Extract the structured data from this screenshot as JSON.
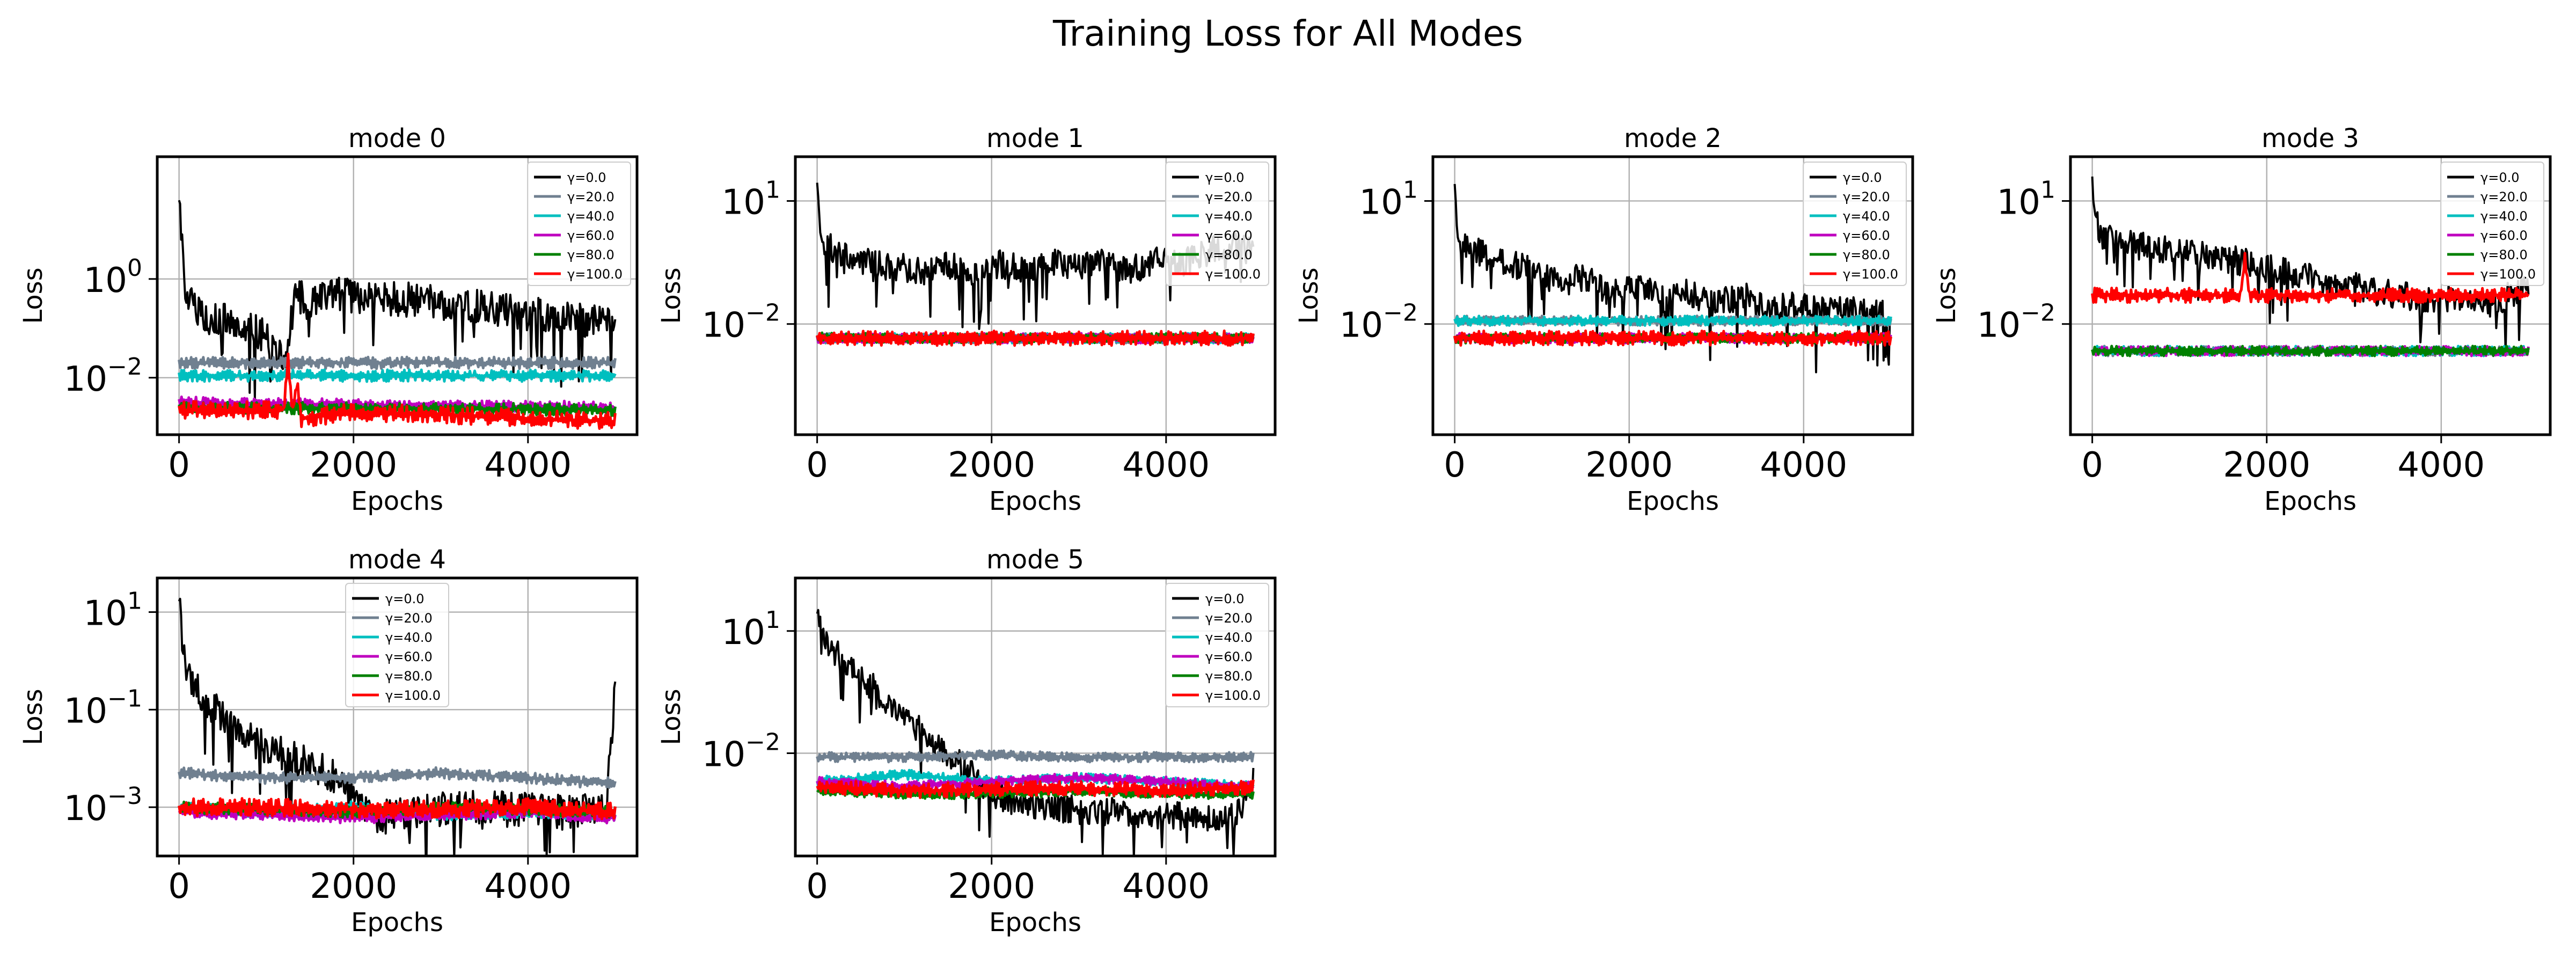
{
  "figure": {
    "title": "Training Loss for All Modes"
  },
  "chart_data": [
    {
      "type": "line",
      "title": "mode 0",
      "xlabel": "Epochs",
      "ylabel": "Loss",
      "yscale": "log",
      "xlim": [
        -250,
        5250
      ],
      "ylim": [
        0.0007,
        300
      ],
      "xticks": [
        0,
        2000,
        4000
      ],
      "yticks": [
        1,
        0.01
      ],
      "grid": true,
      "legend": "upper right",
      "series": [
        {
          "name": "γ=0.0",
          "color": "#000000",
          "x": [
            0,
            20,
            60,
            120,
            200,
            400,
            700,
            1000,
            1200,
            1280,
            1350,
            1450,
            1700,
            2000,
            2500,
            3000,
            3500,
            4000,
            4500,
            5000
          ],
          "y": [
            60,
            12,
            1.0,
            0.35,
            0.2,
            0.16,
            0.12,
            0.07,
            0.02,
            0.12,
            0.6,
            0.3,
            0.5,
            0.45,
            0.4,
            0.33,
            0.26,
            0.2,
            0.16,
            0.12
          ]
        },
        {
          "name": "γ=20.0",
          "color": "#708090",
          "x": [
            0,
            1000,
            2000,
            3000,
            4000,
            5000
          ],
          "y": [
            0.02,
            0.02,
            0.02,
            0.02,
            0.02,
            0.02
          ]
        },
        {
          "name": "γ=40.0",
          "color": "#00BFBF",
          "x": [
            0,
            1000,
            2000,
            3000,
            4000,
            5000
          ],
          "y": [
            0.011,
            0.011,
            0.011,
            0.011,
            0.011,
            0.011
          ]
        },
        {
          "name": "γ=60.0",
          "color": "#BF00BF",
          "x": [
            0,
            1000,
            2000,
            3000,
            4000,
            5000
          ],
          "y": [
            0.0032,
            0.003,
            0.0028,
            0.0027,
            0.0026,
            0.0025
          ]
        },
        {
          "name": "γ=80.0",
          "color": "#008000",
          "x": [
            0,
            1000,
            2000,
            3000,
            4000,
            5000
          ],
          "y": [
            0.0025,
            0.0024,
            0.0024,
            0.0023,
            0.0023,
            0.0022
          ]
        },
        {
          "name": "γ=100.0",
          "color": "#FF0000",
          "x": [
            0,
            1000,
            1200,
            1250,
            1300,
            1350,
            1400,
            2000,
            3000,
            4000,
            5000
          ],
          "y": [
            0.0022,
            0.0022,
            0.0022,
            0.03,
            0.002,
            0.008,
            0.0015,
            0.002,
            0.0018,
            0.0015,
            0.0013
          ]
        }
      ]
    },
    {
      "type": "line",
      "title": "mode 1",
      "xlabel": "Epochs",
      "ylabel": "Loss",
      "yscale": "log",
      "xlim": [
        -250,
        5250
      ],
      "ylim": [
        2e-05,
        120
      ],
      "xticks": [
        0,
        2000,
        4000
      ],
      "yticks": [
        10,
        0.01
      ],
      "grid": true,
      "legend": "upper right",
      "series": [
        {
          "name": "γ=0.0",
          "color": "#000000",
          "x": [
            0,
            30,
            100,
            300,
            600,
            900,
            1200,
            1500,
            1800,
            2100,
            2400,
            2700,
            3000,
            3300,
            3600,
            3900,
            4200,
            4500,
            4800,
            5000
          ],
          "y": [
            40,
            2,
            0.8,
            0.5,
            0.3,
            0.25,
            0.2,
            0.3,
            0.15,
            0.3,
            0.2,
            0.35,
            0.25,
            0.3,
            0.2,
            0.4,
            0.3,
            0.6,
            0.9,
            0.5
          ]
        },
        {
          "name": "γ=20.0",
          "color": "#708090",
          "x": [
            0,
            1000,
            2000,
            3000,
            4000,
            5000
          ],
          "y": [
            0.0045,
            0.0045,
            0.0045,
            0.0045,
            0.0045,
            0.0045
          ]
        },
        {
          "name": "γ=40.0",
          "color": "#00BFBF",
          "x": [
            0,
            1000,
            2000,
            3000,
            4000,
            5000
          ],
          "y": [
            0.0045,
            0.0045,
            0.0045,
            0.0045,
            0.0045,
            0.0045
          ]
        },
        {
          "name": "γ=60.0",
          "color": "#BF00BF",
          "x": [
            0,
            1000,
            2000,
            3000,
            4000,
            5000
          ],
          "y": [
            0.0045,
            0.0045,
            0.0045,
            0.0045,
            0.0045,
            0.0045
          ]
        },
        {
          "name": "γ=80.0",
          "color": "#008000",
          "x": [
            0,
            1000,
            2000,
            3000,
            4000,
            5000
          ],
          "y": [
            0.0047,
            0.0045,
            0.0045,
            0.0045,
            0.0045,
            0.0045
          ]
        },
        {
          "name": "γ=100.0",
          "color": "#FF0000",
          "x": [
            0,
            1000,
            2000,
            3000,
            4000,
            5000
          ],
          "y": [
            0.0045,
            0.0045,
            0.0045,
            0.0045,
            0.0045,
            0.0045
          ]
        }
      ]
    },
    {
      "type": "line",
      "title": "mode 2",
      "xlabel": "Epochs",
      "ylabel": "Loss",
      "yscale": "log",
      "xlim": [
        -250,
        5250
      ],
      "ylim": [
        2e-05,
        120
      ],
      "xticks": [
        0,
        2000,
        4000
      ],
      "yticks": [
        10,
        0.01
      ],
      "grid": true,
      "legend": "upper right",
      "series": [
        {
          "name": "γ=0.0",
          "color": "#000000",
          "x": [
            0,
            30,
            100,
            300,
            600,
            900,
            1200,
            1500,
            1800,
            2100,
            2400,
            2700,
            3000,
            3300,
            3600,
            3900,
            4200,
            4500,
            4800,
            5000
          ],
          "y": [
            35,
            3,
            1.0,
            0.5,
            0.3,
            0.2,
            0.1,
            0.15,
            0.05,
            0.08,
            0.04,
            0.06,
            0.03,
            0.05,
            0.02,
            0.03,
            0.02,
            0.025,
            0.02,
            0.015
          ]
        },
        {
          "name": "γ=20.0",
          "color": "#708090",
          "x": [
            0,
            1000,
            2000,
            3000,
            4000,
            5000
          ],
          "y": [
            0.012,
            0.012,
            0.012,
            0.012,
            0.012,
            0.012
          ]
        },
        {
          "name": "γ=40.0",
          "color": "#00BFBF",
          "x": [
            0,
            1000,
            2000,
            3000,
            4000,
            5000
          ],
          "y": [
            0.012,
            0.012,
            0.012,
            0.012,
            0.012,
            0.012
          ]
        },
        {
          "name": "γ=60.0",
          "color": "#BF00BF",
          "x": [
            0,
            1000,
            2000,
            3000,
            4000,
            5000
          ],
          "y": [
            0.0045,
            0.0045,
            0.0045,
            0.0045,
            0.0045,
            0.0045
          ]
        },
        {
          "name": "γ=80.0",
          "color": "#008000",
          "x": [
            0,
            1000,
            2000,
            3000,
            4000,
            5000
          ],
          "y": [
            0.0045,
            0.0045,
            0.0045,
            0.0045,
            0.0045,
            0.0045
          ]
        },
        {
          "name": "γ=100.0",
          "color": "#FF0000",
          "x": [
            0,
            1000,
            2000,
            3000,
            4000,
            5000
          ],
          "y": [
            0.0045,
            0.0045,
            0.0045,
            0.0045,
            0.0045,
            0.0045
          ]
        }
      ]
    },
    {
      "type": "line",
      "title": "mode 3",
      "xlabel": "Epochs",
      "ylabel": "Loss",
      "yscale": "log",
      "xlim": [
        -250,
        5250
      ],
      "ylim": [
        2e-05,
        120
      ],
      "xticks": [
        0,
        2000,
        4000
      ],
      "yticks": [
        10,
        0.01
      ],
      "grid": true,
      "legend": "upper right",
      "series": [
        {
          "name": "γ=0.0",
          "color": "#000000",
          "x": [
            0,
            30,
            100,
            300,
            600,
            900,
            1200,
            1500,
            1800,
            2100,
            2400,
            2700,
            3000,
            3300,
            3600,
            3900,
            4200,
            4500,
            4800,
            5000
          ],
          "y": [
            50,
            4,
            1.5,
            1.0,
            0.8,
            0.6,
            0.5,
            0.4,
            0.3,
            0.2,
            0.15,
            0.1,
            0.08,
            0.06,
            0.05,
            0.04,
            0.04,
            0.03,
            0.05,
            0.1
          ]
        },
        {
          "name": "γ=20.0",
          "color": "#708090",
          "x": [
            0,
            1000,
            2000,
            3000,
            4000,
            5000
          ],
          "y": [
            0.0022,
            0.0022,
            0.0022,
            0.0022,
            0.0022,
            0.0022
          ]
        },
        {
          "name": "γ=40.0",
          "color": "#00BFBF",
          "x": [
            0,
            1000,
            2000,
            3000,
            4000,
            5000
          ],
          "y": [
            0.0022,
            0.0022,
            0.0022,
            0.0022,
            0.0022,
            0.0022
          ]
        },
        {
          "name": "γ=60.0",
          "color": "#BF00BF",
          "x": [
            0,
            1000,
            2000,
            3000,
            4000,
            5000
          ],
          "y": [
            0.0022,
            0.0022,
            0.0022,
            0.0022,
            0.0022,
            0.0022
          ]
        },
        {
          "name": "γ=80.0",
          "color": "#008000",
          "x": [
            0,
            1000,
            2000,
            3000,
            4000,
            5000
          ],
          "y": [
            0.0022,
            0.0022,
            0.0022,
            0.0022,
            0.0022,
            0.0022
          ]
        },
        {
          "name": "γ=100.0",
          "color": "#FF0000",
          "x": [
            0,
            1000,
            1700,
            1750,
            1800,
            2000,
            3000,
            4000,
            5000
          ],
          "y": [
            0.05,
            0.05,
            0.05,
            0.4,
            0.05,
            0.05,
            0.05,
            0.05,
            0.05
          ]
        }
      ]
    },
    {
      "type": "line",
      "title": "mode 4",
      "xlabel": "Epochs",
      "ylabel": "Loss",
      "yscale": "log",
      "xlim": [
        -250,
        5250
      ],
      "ylim": [
        0.0001,
        50
      ],
      "xticks": [
        0,
        2000,
        4000
      ],
      "yticks": [
        10,
        0.1,
        0.001
      ],
      "grid": true,
      "legend": "upper center",
      "series": [
        {
          "name": "γ=0.0",
          "color": "#000000",
          "x": [
            0,
            30,
            100,
            300,
            500,
            700,
            900,
            1100,
            1300,
            1500,
            1700,
            1900,
            2100,
            2300,
            2600,
            3000,
            3500,
            4000,
            4500,
            4900,
            5000
          ],
          "y": [
            20,
            3,
            0.5,
            0.15,
            0.08,
            0.03,
            0.02,
            0.015,
            0.01,
            0.008,
            0.005,
            0.003,
            0.001,
            0.0006,
            0.0008,
            0.0009,
            0.001,
            0.0009,
            0.0008,
            0.001,
            0.3
          ]
        },
        {
          "name": "γ=20.0",
          "color": "#708090",
          "x": [
            0,
            1000,
            2000,
            3000,
            4000,
            5000
          ],
          "y": [
            0.005,
            0.004,
            0.004,
            0.005,
            0.004,
            0.003
          ]
        },
        {
          "name": "γ=40.0",
          "color": "#00BFBF",
          "x": [
            0,
            1000,
            2000,
            3000,
            4000,
            5000
          ],
          "y": [
            0.001,
            0.0008,
            0.001,
            0.0007,
            0.0008,
            0.0007
          ]
        },
        {
          "name": "γ=60.0",
          "color": "#BF00BF",
          "x": [
            0,
            1000,
            2000,
            3000,
            4000,
            5000
          ],
          "y": [
            0.0008,
            0.0007,
            0.0006,
            0.0007,
            0.0008,
            0.0006
          ]
        },
        {
          "name": "γ=80.0",
          "color": "#008000",
          "x": [
            0,
            1000,
            2000,
            3000,
            4000,
            5000
          ],
          "y": [
            0.001,
            0.0009,
            0.0008,
            0.001,
            0.0009,
            0.0008
          ]
        },
        {
          "name": "γ=100.0",
          "color": "#FF0000",
          "x": [
            0,
            1000,
            2000,
            3000,
            4000,
            5000
          ],
          "y": [
            0.001,
            0.001,
            0.0009,
            0.0009,
            0.001,
            0.0008
          ]
        }
      ]
    },
    {
      "type": "line",
      "title": "mode 5",
      "xlabel": "Epochs",
      "ylabel": "Loss",
      "yscale": "log",
      "xlim": [
        -250,
        5250
      ],
      "ylim": [
        3e-05,
        200
      ],
      "xticks": [
        0,
        2000,
        4000
      ],
      "yticks": [
        10,
        0.01
      ],
      "grid": true,
      "legend": "upper right",
      "series": [
        {
          "name": "γ=0.0",
          "color": "#000000",
          "x": [
            0,
            30,
            100,
            300,
            500,
            700,
            900,
            1100,
            1300,
            1500,
            1700,
            2000,
            2300,
            2600,
            3000,
            3500,
            4000,
            4500,
            4800,
            5000
          ],
          "y": [
            30,
            15,
            5,
            2,
            0.8,
            0.3,
            0.1,
            0.05,
            0.02,
            0.01,
            0.004,
            0.001,
            0.0006,
            0.0005,
            0.0004,
            0.00035,
            0.0003,
            0.00028,
            0.00025,
            0.002
          ]
        },
        {
          "name": "γ=20.0",
          "color": "#708090",
          "x": [
            0,
            1000,
            2000,
            3000,
            4000,
            5000
          ],
          "y": [
            0.008,
            0.008,
            0.009,
            0.008,
            0.008,
            0.008
          ]
        },
        {
          "name": "γ=40.0",
          "color": "#00BFBF",
          "x": [
            0,
            1000,
            2000,
            3000,
            4000,
            5000
          ],
          "y": [
            0.002,
            0.003,
            0.002,
            0.0025,
            0.002,
            0.0015
          ]
        },
        {
          "name": "γ=60.0",
          "color": "#BF00BF",
          "x": [
            0,
            1000,
            2000,
            3000,
            4000,
            5000
          ],
          "y": [
            0.002,
            0.0015,
            0.002,
            0.0025,
            0.002,
            0.0015
          ]
        },
        {
          "name": "γ=80.0",
          "color": "#008000",
          "x": [
            0,
            1000,
            2000,
            3000,
            4000,
            5000
          ],
          "y": [
            0.0012,
            0.001,
            0.001,
            0.0012,
            0.001,
            0.001
          ]
        },
        {
          "name": "γ=100.0",
          "color": "#FF0000",
          "x": [
            0,
            1000,
            2000,
            3000,
            4000,
            5000
          ],
          "y": [
            0.0015,
            0.0012,
            0.0013,
            0.0014,
            0.0012,
            0.0015
          ]
        }
      ]
    }
  ]
}
